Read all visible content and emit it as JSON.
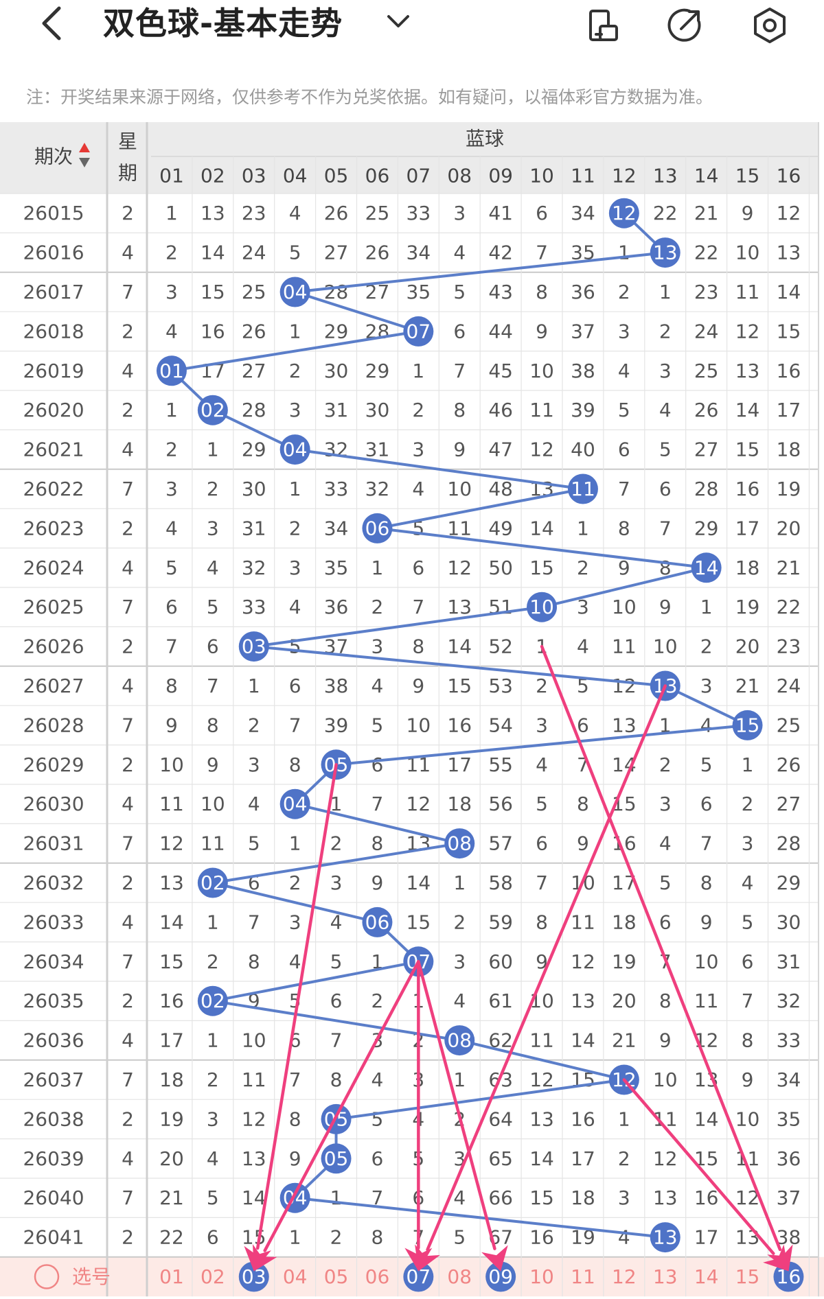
{
  "header": {
    "title": "双色球-基本走势",
    "icons": [
      "back-arrow-icon",
      "dropdown-chevron-icon",
      "screen-mode-icon",
      "edit-icon",
      "settings-icon"
    ]
  },
  "note": "注：开奖结果来源于网络，仅供参考不作为兑奖依据。如有疑问，以福体彩官方数据为准。",
  "table": {
    "period_header": "期次",
    "week_header_1": "星",
    "week_header_2": "期",
    "blue_header": "蓝球",
    "columns": [
      "01",
      "02",
      "03",
      "04",
      "05",
      "06",
      "07",
      "08",
      "09",
      "10",
      "11",
      "12",
      "13",
      "14",
      "15",
      "16"
    ],
    "rows": [
      {
        "period": "26015",
        "week": "2",
        "values": [
          "1",
          "13",
          "23",
          "4",
          "26",
          "25",
          "33",
          "3",
          "41",
          "6",
          "34",
          "12",
          "22",
          "21",
          "9",
          "12"
        ],
        "hit": 12
      },
      {
        "period": "26016",
        "week": "4",
        "values": [
          "2",
          "14",
          "24",
          "5",
          "27",
          "26",
          "34",
          "4",
          "42",
          "7",
          "35",
          "1",
          "13",
          "22",
          "10",
          "13"
        ],
        "hit": 13
      },
      {
        "period": "26017",
        "week": "7",
        "values": [
          "3",
          "15",
          "25",
          "04",
          "28",
          "27",
          "35",
          "5",
          "43",
          "8",
          "36",
          "2",
          "1",
          "23",
          "11",
          "14"
        ],
        "hit": 4
      },
      {
        "period": "26018",
        "week": "2",
        "values": [
          "4",
          "16",
          "26",
          "1",
          "29",
          "28",
          "07",
          "6",
          "44",
          "9",
          "37",
          "3",
          "2",
          "24",
          "12",
          "15"
        ],
        "hit": 7
      },
      {
        "period": "26019",
        "week": "4",
        "values": [
          "01",
          "17",
          "27",
          "2",
          "30",
          "29",
          "1",
          "7",
          "45",
          "10",
          "38",
          "4",
          "3",
          "25",
          "13",
          "16"
        ],
        "hit": 1
      },
      {
        "period": "26020",
        "week": "2",
        "values": [
          "1",
          "02",
          "28",
          "3",
          "31",
          "30",
          "2",
          "8",
          "46",
          "11",
          "39",
          "5",
          "4",
          "26",
          "14",
          "17"
        ],
        "hit": 2
      },
      {
        "period": "26021",
        "week": "4",
        "values": [
          "2",
          "1",
          "29",
          "04",
          "32",
          "31",
          "3",
          "9",
          "47",
          "12",
          "40",
          "6",
          "5",
          "27",
          "15",
          "18"
        ],
        "hit": 4
      },
      {
        "period": "26022",
        "week": "7",
        "values": [
          "3",
          "2",
          "30",
          "1",
          "33",
          "32",
          "4",
          "10",
          "48",
          "13",
          "11",
          "7",
          "6",
          "28",
          "16",
          "19"
        ],
        "hit": 11
      },
      {
        "period": "26023",
        "week": "2",
        "values": [
          "4",
          "3",
          "31",
          "2",
          "34",
          "06",
          "5",
          "11",
          "49",
          "14",
          "1",
          "8",
          "7",
          "29",
          "17",
          "20"
        ],
        "hit": 6
      },
      {
        "period": "26024",
        "week": "4",
        "values": [
          "5",
          "4",
          "32",
          "3",
          "35",
          "1",
          "6",
          "12",
          "50",
          "15",
          "2",
          "9",
          "8",
          "14",
          "18",
          "21"
        ],
        "hit": 14
      },
      {
        "period": "26025",
        "week": "7",
        "values": [
          "6",
          "5",
          "33",
          "4",
          "36",
          "2",
          "7",
          "13",
          "51",
          "10",
          "3",
          "10",
          "9",
          "1",
          "19",
          "22"
        ],
        "hit": 10
      },
      {
        "period": "26026",
        "week": "2",
        "values": [
          "7",
          "6",
          "03",
          "5",
          "37",
          "3",
          "8",
          "14",
          "52",
          "1",
          "4",
          "11",
          "10",
          "2",
          "20",
          "23"
        ],
        "hit": 3
      },
      {
        "period": "26027",
        "week": "4",
        "values": [
          "8",
          "7",
          "1",
          "6",
          "38",
          "4",
          "9",
          "15",
          "53",
          "2",
          "5",
          "12",
          "13",
          "3",
          "21",
          "24"
        ],
        "hit": 13
      },
      {
        "period": "26028",
        "week": "7",
        "values": [
          "9",
          "8",
          "2",
          "7",
          "39",
          "5",
          "10",
          "16",
          "54",
          "3",
          "6",
          "13",
          "1",
          "4",
          "15",
          "25"
        ],
        "hit": 15
      },
      {
        "period": "26029",
        "week": "2",
        "values": [
          "10",
          "9",
          "3",
          "8",
          "05",
          "6",
          "11",
          "17",
          "55",
          "4",
          "7",
          "14",
          "2",
          "5",
          "1",
          "26"
        ],
        "hit": 5
      },
      {
        "period": "26030",
        "week": "4",
        "values": [
          "11",
          "10",
          "4",
          "04",
          "1",
          "7",
          "12",
          "18",
          "56",
          "5",
          "8",
          "15",
          "3",
          "6",
          "2",
          "27"
        ],
        "hit": 4
      },
      {
        "period": "26031",
        "week": "7",
        "values": [
          "12",
          "11",
          "5",
          "1",
          "2",
          "8",
          "13",
          "08",
          "57",
          "6",
          "9",
          "16",
          "4",
          "7",
          "3",
          "28"
        ],
        "hit": 8
      },
      {
        "period": "26032",
        "week": "2",
        "values": [
          "13",
          "02",
          "6",
          "2",
          "3",
          "9",
          "14",
          "1",
          "58",
          "7",
          "10",
          "17",
          "5",
          "8",
          "4",
          "29"
        ],
        "hit": 2
      },
      {
        "period": "26033",
        "week": "4",
        "values": [
          "14",
          "1",
          "7",
          "3",
          "4",
          "06",
          "15",
          "2",
          "59",
          "8",
          "11",
          "18",
          "6",
          "9",
          "5",
          "30"
        ],
        "hit": 6
      },
      {
        "period": "26034",
        "week": "7",
        "values": [
          "15",
          "2",
          "8",
          "4",
          "5",
          "1",
          "07",
          "3",
          "60",
          "9",
          "12",
          "19",
          "7",
          "10",
          "6",
          "31"
        ],
        "hit": 7
      },
      {
        "period": "26035",
        "week": "2",
        "values": [
          "16",
          "02",
          "9",
          "5",
          "6",
          "2",
          "1",
          "4",
          "61",
          "10",
          "13",
          "20",
          "8",
          "11",
          "7",
          "32"
        ],
        "hit": 2
      },
      {
        "period": "26036",
        "week": "4",
        "values": [
          "17",
          "1",
          "10",
          "6",
          "7",
          "3",
          "2",
          "08",
          "62",
          "11",
          "14",
          "21",
          "9",
          "12",
          "8",
          "33"
        ],
        "hit": 8
      },
      {
        "period": "26037",
        "week": "7",
        "values": [
          "18",
          "2",
          "11",
          "7",
          "8",
          "4",
          "3",
          "1",
          "63",
          "12",
          "15",
          "12",
          "10",
          "13",
          "9",
          "34"
        ],
        "hit": 12
      },
      {
        "period": "26038",
        "week": "2",
        "values": [
          "19",
          "3",
          "12",
          "8",
          "05",
          "5",
          "4",
          "2",
          "64",
          "13",
          "16",
          "1",
          "11",
          "14",
          "10",
          "35"
        ],
        "hit": 5
      },
      {
        "period": "26039",
        "week": "4",
        "values": [
          "20",
          "4",
          "13",
          "9",
          "05",
          "6",
          "5",
          "3",
          "65",
          "14",
          "17",
          "2",
          "12",
          "15",
          "11",
          "36"
        ],
        "hit": 5
      },
      {
        "period": "26040",
        "week": "7",
        "values": [
          "21",
          "5",
          "14",
          "04",
          "1",
          "7",
          "6",
          "4",
          "66",
          "15",
          "18",
          "3",
          "13",
          "16",
          "12",
          "37"
        ],
        "hit": 4
      },
      {
        "period": "26041",
        "week": "2",
        "values": [
          "22",
          "6",
          "15",
          "1",
          "2",
          "8",
          "7",
          "5",
          "67",
          "16",
          "19",
          "4",
          "13",
          "17",
          "13",
          "38"
        ],
        "hit": 13
      }
    ],
    "select_label": "选号",
    "selected": [
      3,
      7,
      9,
      16
    ],
    "predictions": [
      {
        "from_row": 11,
        "from_col": 10,
        "to_col": 16
      },
      {
        "from_row": 12,
        "from_col": 13,
        "to_col": 7
      },
      {
        "from_row": 14,
        "from_col": 5,
        "to_col": 3
      },
      {
        "from_row": 19,
        "from_col": 7,
        "to_col": 3
      },
      {
        "from_row": 19,
        "from_col": 7,
        "to_col": 7
      },
      {
        "from_row": 19,
        "from_col": 7,
        "to_col": 9
      },
      {
        "from_row": 22,
        "from_col": 12,
        "to_col": 16
      }
    ]
  },
  "colors": {
    "ball_blue": "#4f73c7",
    "trend_line": "#5b7ec9",
    "arrow_pink": "#ef3f7e",
    "header_bg": "#ebebeb",
    "select_row_bg": "#fdeae6",
    "select_text": "#f08585",
    "sort_up": "#e53935",
    "sort_down": "#666666"
  }
}
